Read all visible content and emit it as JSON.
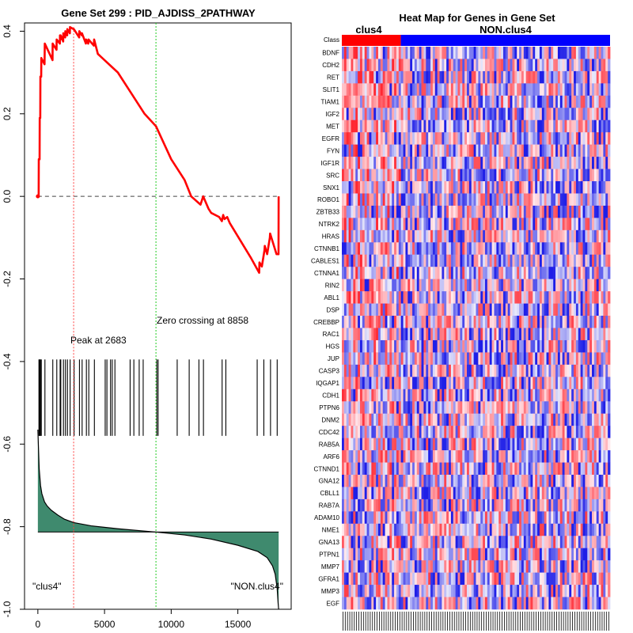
{
  "colors": {
    "es_curve": "#ff0000",
    "peak_line": "#ff4040",
    "zero_line": "#22cc22",
    "metric_fill": "#3f8a6e",
    "class_pos": "#ff0000",
    "class_neg": "#0000ff",
    "heat_high": "#ff3030",
    "heat_low": "#1010ee"
  },
  "chart_data": [
    {
      "type": "line",
      "title": "Gene Set  299 : PID_AJDISS_2PATHWAY",
      "xlabel": "",
      "ylabel": "",
      "xlim": [
        -1000,
        19000
      ],
      "ylim": [
        -1.0,
        0.42
      ],
      "xticks": [
        0,
        5000,
        10000,
        15000
      ],
      "xtick_labels": [
        "0",
        "5000",
        "10000",
        "15000"
      ],
      "yticks": [
        0.4,
        0.2,
        0.0,
        -0.2,
        -0.4,
        -0.6,
        -0.8,
        -1.0
      ],
      "ytick_labels": [
        "0.4",
        "0.2",
        "0.0",
        "-0.2",
        "-0.4",
        "-0.6",
        "-0.8",
        "-1.0"
      ],
      "es_profile": {
        "x": [
          0,
          60,
          70,
          130,
          140,
          180,
          190,
          250,
          260,
          500,
          520,
          1100,
          1110,
          1400,
          1410,
          1650,
          1660,
          1700,
          1710,
          1900,
          1910,
          2050,
          2060,
          2200,
          2210,
          2400,
          2410,
          2683,
          2700,
          3100,
          3110,
          3300,
          3310,
          3600,
          3620,
          3780,
          3800,
          4200,
          4220,
          4500,
          6000,
          7000,
          8000,
          8858,
          10000,
          11000,
          11500,
          12200,
          12400,
          12800,
          13000,
          13600,
          13800,
          13900,
          14000,
          14200,
          14400,
          16000,
          16600,
          16620,
          16800,
          17000,
          17020,
          17200,
          17400,
          17420,
          17900,
          18000,
          18050,
          18060
        ],
        "y": [
          0.0,
          0.0,
          0.09,
          0.09,
          0.19,
          0.19,
          0.29,
          0.29,
          0.335,
          0.32,
          0.37,
          0.33,
          0.37,
          0.355,
          0.38,
          0.37,
          0.39,
          0.38,
          0.39,
          0.375,
          0.395,
          0.385,
          0.4,
          0.39,
          0.405,
          0.395,
          0.41,
          0.405,
          0.405,
          0.385,
          0.4,
          0.39,
          0.395,
          0.37,
          0.38,
          0.37,
          0.38,
          0.365,
          0.38,
          0.345,
          0.3,
          0.25,
          0.2,
          0.17,
          0.09,
          0.04,
          0.0,
          -0.02,
          0.0,
          -0.03,
          -0.04,
          -0.05,
          -0.06,
          -0.045,
          -0.055,
          -0.05,
          -0.065,
          -0.15,
          -0.185,
          -0.16,
          -0.17,
          -0.13,
          -0.12,
          -0.14,
          -0.1,
          -0.09,
          -0.14,
          -0.14,
          -0.14,
          0.0
        ]
      },
      "hit_positions": [
        80,
        120,
        160,
        200,
        260,
        530,
        1120,
        1420,
        1670,
        1720,
        1920,
        2070,
        2220,
        2420,
        2720,
        3120,
        3320,
        3640,
        3820,
        4240,
        5050,
        5180,
        5450,
        5580,
        5780,
        6920,
        7200,
        7600,
        7900,
        8920,
        9020,
        10450,
        11350,
        12080,
        12420,
        13820,
        14100,
        16450,
        16950,
        17450,
        17950
      ],
      "ranked_metric": {
        "x": [
          0,
          100,
          200,
          300,
          500,
          700,
          1000,
          1500,
          2000,
          2683,
          4000,
          6000,
          8858,
          11000,
          13000,
          15000,
          16500,
          17200,
          17600,
          17800,
          17950,
          18020,
          18060
        ],
        "y": [
          -0.565,
          -0.66,
          -0.7,
          -0.72,
          -0.74,
          -0.75,
          -0.76,
          -0.772,
          -0.782,
          -0.79,
          -0.798,
          -0.805,
          -0.813,
          -0.82,
          -0.83,
          -0.845,
          -0.86,
          -0.875,
          -0.895,
          -0.915,
          -0.95,
          -0.985,
          -1.0
        ]
      },
      "metric_zero": -0.813,
      "zero_baseline": 0.0,
      "peak": {
        "x": 2683,
        "label": "Peak at 2683"
      },
      "zero_crossing": {
        "x": 8858,
        "label": "Zero crossing at 8858"
      },
      "left_class_label": "\"clus4\"",
      "right_class_label": "\"NON.clus4\""
    },
    {
      "type": "heatmap",
      "title": "Heat Map for Genes in Gene Set",
      "class_row_label": "Class",
      "class_groups": [
        {
          "label": "clus4",
          "fraction": 0.22,
          "color_key": "class_pos"
        },
        {
          "label": "NON.clus4",
          "fraction": 0.78,
          "color_key": "class_neg"
        }
      ],
      "n_samples": 118,
      "genes": [
        "BDNF",
        "CDH2",
        "RET",
        "SLIT1",
        "TIAM1",
        "IGF2",
        "MET",
        "EGFR",
        "FYN",
        "IGF1R",
        "SRC",
        "SNX1",
        "ROBO1",
        "ZBTB33",
        "NTRK2",
        "HRAS",
        "CTNNB1",
        "CABLES1",
        "CTNNA1",
        "RIN2",
        "ABL1",
        "DSP",
        "CREBBP",
        "RAC1",
        "HGS",
        "JUP",
        "CASP3",
        "IQGAP1",
        "CDH1",
        "PTPN6",
        "DNM2",
        "CDC42",
        "RAB5A",
        "ARF6",
        "CTNND1",
        "GNA12",
        "CBLL1",
        "RAB7A",
        "ADAM10",
        "NME1",
        "GNA13",
        "PTPN1",
        "MMP7",
        "GFRA1",
        "MMP3",
        "EGF"
      ]
    }
  ]
}
